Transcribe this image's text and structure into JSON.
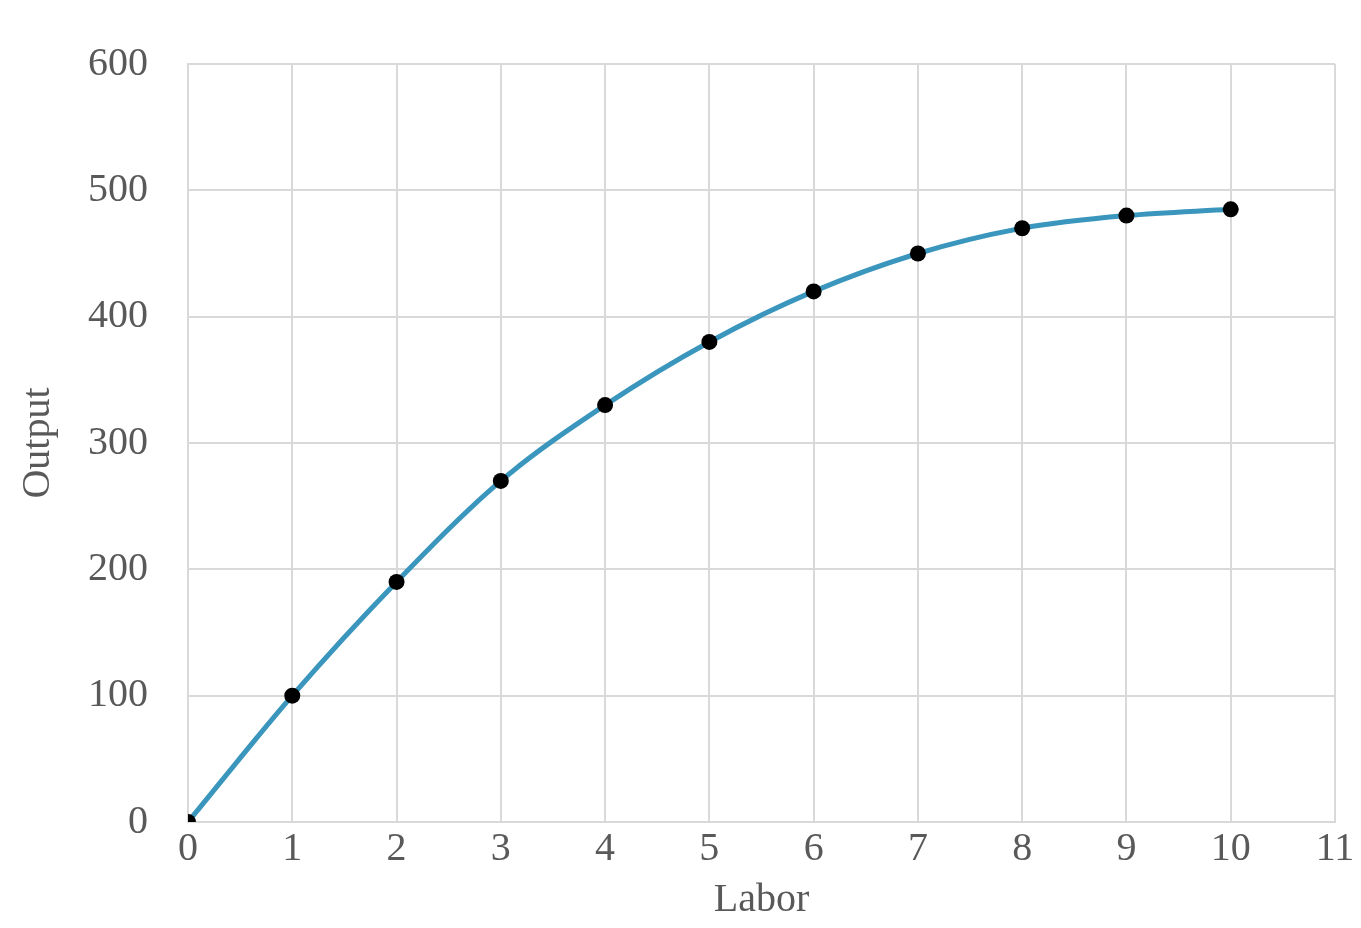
{
  "chart_data": {
    "type": "line",
    "xlabel": "Labor",
    "ylabel": "Output",
    "x": [
      0,
      1,
      2,
      3,
      4,
      5,
      6,
      7,
      8,
      9,
      10
    ],
    "series": [
      {
        "color": "#3a96bd",
        "values": [
          0,
          100,
          190,
          270,
          330,
          380,
          420,
          450,
          470,
          480,
          485
        ]
      }
    ],
    "xlim": [
      0,
      11
    ],
    "xticks": [
      0,
      1,
      2,
      3,
      4,
      5,
      6,
      7,
      8,
      9,
      10,
      11
    ],
    "ylim": [
      0,
      600
    ],
    "yticks": [
      0,
      100,
      200,
      300,
      400,
      500,
      600
    ],
    "grid": true,
    "legend": false,
    "marker": "circle",
    "line_style": "solid"
  }
}
